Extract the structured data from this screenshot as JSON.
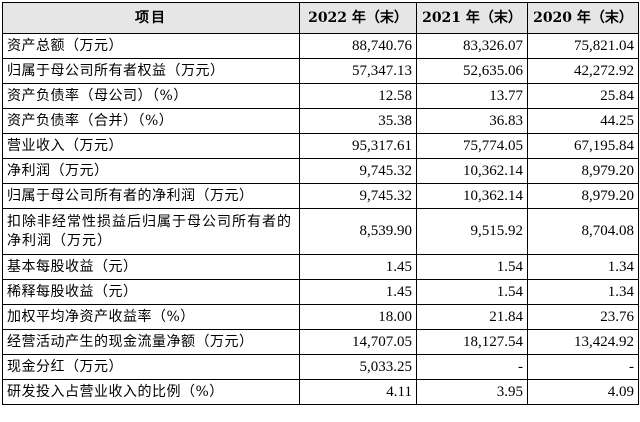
{
  "table": {
    "headers": [
      "项目",
      "2022 年（末）",
      "2021 年（末）",
      "2020 年（末）"
    ],
    "rows": [
      {
        "label": "资产总额（万元）",
        "values": [
          "88,740.76",
          "83,326.07",
          "75,821.04"
        ]
      },
      {
        "label": "归属于母公司所有者权益（万元）",
        "values": [
          "57,347.13",
          "52,635.06",
          "42,272.92"
        ]
      },
      {
        "label": "资产负债率（母公司）（%）",
        "values": [
          "12.58",
          "13.77",
          "25.84"
        ]
      },
      {
        "label": "资产负债率（合并）（%）",
        "values": [
          "35.38",
          "36.83",
          "44.25"
        ]
      },
      {
        "label": "营业收入（万元）",
        "values": [
          "95,317.61",
          "75,774.05",
          "67,195.84"
        ]
      },
      {
        "label": "净利润（万元）",
        "values": [
          "9,745.32",
          "10,362.14",
          "8,979.20"
        ]
      },
      {
        "label": "归属于母公司所有者的净利润（万元）",
        "values": [
          "9,745.32",
          "10,362.14",
          "8,979.20"
        ]
      },
      {
        "label": "扣除非经常性损益后归属于母公司所有者的净利润（万元）",
        "values": [
          "8,539.90",
          "9,515.92",
          "8,704.08"
        ]
      },
      {
        "label": "基本每股收益（元）",
        "values": [
          "1.45",
          "1.54",
          "1.34"
        ]
      },
      {
        "label": "稀释每股收益（元）",
        "values": [
          "1.45",
          "1.54",
          "1.34"
        ]
      },
      {
        "label": "加权平均净资产收益率（%）",
        "values": [
          "18.00",
          "21.84",
          "23.76"
        ]
      },
      {
        "label": "经营活动产生的现金流量净额（万元）",
        "values": [
          "14,707.05",
          "18,127.54",
          "13,424.92"
        ]
      },
      {
        "label": "现金分红（万元）",
        "values": [
          "5,033.25",
          "-",
          "-"
        ]
      },
      {
        "label": "研发投入占营业收入的比例（%）",
        "values": [
          "4.11",
          "3.95",
          "4.09"
        ]
      }
    ]
  },
  "colors": {
    "header_background": "#e7e6e6",
    "border": "#000000"
  }
}
